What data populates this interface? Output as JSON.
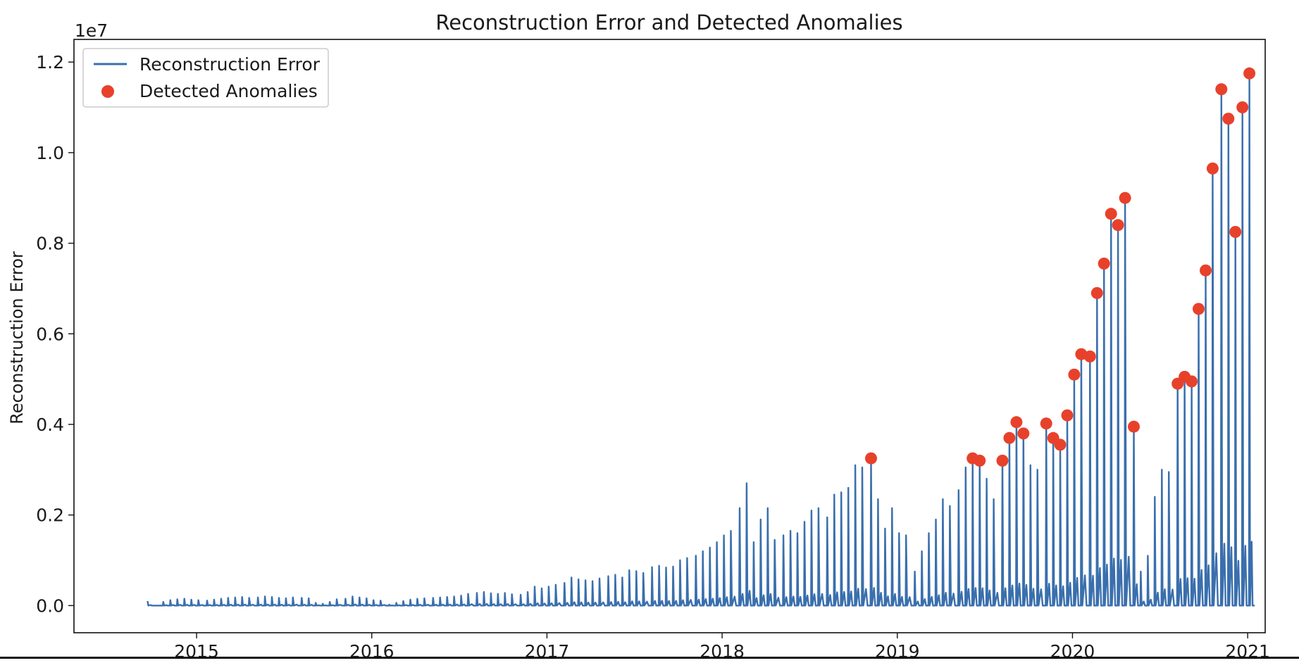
{
  "chart_data": {
    "type": "line",
    "title": "Reconstruction Error and Detected Anomalies",
    "xlabel": "",
    "ylabel": "Reconstruction Error",
    "y_offset_label": "1e7",
    "y_scale": 10000000,
    "xlim": [
      2014.3,
      2021.1
    ],
    "ylim": [
      -600000,
      12500000
    ],
    "x_ticks": [
      2015,
      2016,
      2017,
      2018,
      2019,
      2020,
      2021
    ],
    "x_tick_labels": [
      "2015",
      "2016",
      "2017",
      "2018",
      "2019",
      "2020",
      "2021"
    ],
    "y_ticks": [
      0,
      2000000,
      4000000,
      6000000,
      8000000,
      10000000,
      12000000
    ],
    "y_tick_labels": [
      "0.0",
      "0.2",
      "0.4",
      "0.6",
      "0.8",
      "1.0",
      "1.2"
    ],
    "grid": false,
    "legend_position": "top-left",
    "colors": {
      "line": "#3a6fad",
      "anomaly": "#e8412b"
    },
    "series": [
      {
        "name": "Reconstruction Error",
        "kind": "weekly-spike-line",
        "peaks": [
          [
            2014.72,
            100000
          ],
          [
            2014.76,
            0
          ],
          [
            2014.81,
            80000
          ],
          [
            2014.85,
            120000
          ],
          [
            2014.89,
            140000
          ],
          [
            2014.93,
            150000
          ],
          [
            2014.97,
            130000
          ],
          [
            2015.01,
            120000
          ],
          [
            2015.06,
            110000
          ],
          [
            2015.1,
            130000
          ],
          [
            2015.14,
            150000
          ],
          [
            2015.18,
            170000
          ],
          [
            2015.22,
            180000
          ],
          [
            2015.26,
            190000
          ],
          [
            2015.3,
            170000
          ],
          [
            2015.35,
            180000
          ],
          [
            2015.39,
            200000
          ],
          [
            2015.43,
            190000
          ],
          [
            2015.47,
            170000
          ],
          [
            2015.51,
            160000
          ],
          [
            2015.55,
            180000
          ],
          [
            2015.6,
            170000
          ],
          [
            2015.64,
            160000
          ],
          [
            2015.68,
            60000
          ],
          [
            2015.72,
            40000
          ],
          [
            2015.76,
            80000
          ],
          [
            2015.8,
            140000
          ],
          [
            2015.85,
            150000
          ],
          [
            2015.89,
            200000
          ],
          [
            2015.93,
            180000
          ],
          [
            2015.97,
            160000
          ],
          [
            2016.01,
            120000
          ],
          [
            2016.05,
            110000
          ],
          [
            2016.1,
            20000
          ],
          [
            2016.14,
            60000
          ],
          [
            2016.18,
            100000
          ],
          [
            2016.22,
            130000
          ],
          [
            2016.26,
            150000
          ],
          [
            2016.3,
            160000
          ],
          [
            2016.35,
            170000
          ],
          [
            2016.39,
            180000
          ],
          [
            2016.43,
            190000
          ],
          [
            2016.47,
            200000
          ],
          [
            2016.51,
            220000
          ],
          [
            2016.55,
            260000
          ],
          [
            2016.6,
            280000
          ],
          [
            2016.64,
            300000
          ],
          [
            2016.68,
            270000
          ],
          [
            2016.72,
            260000
          ],
          [
            2016.76,
            280000
          ],
          [
            2016.8,
            250000
          ],
          [
            2016.85,
            240000
          ],
          [
            2016.89,
            300000
          ],
          [
            2016.93,
            420000
          ],
          [
            2016.97,
            380000
          ],
          [
            2017.01,
            420000
          ],
          [
            2017.05,
            460000
          ],
          [
            2017.1,
            500000
          ],
          [
            2017.14,
            620000
          ],
          [
            2017.18,
            580000
          ],
          [
            2017.22,
            560000
          ],
          [
            2017.26,
            540000
          ],
          [
            2017.3,
            600000
          ],
          [
            2017.35,
            650000
          ],
          [
            2017.39,
            680000
          ],
          [
            2017.43,
            620000
          ],
          [
            2017.47,
            780000
          ],
          [
            2017.51,
            760000
          ],
          [
            2017.55,
            720000
          ],
          [
            2017.6,
            850000
          ],
          [
            2017.64,
            880000
          ],
          [
            2017.68,
            840000
          ],
          [
            2017.72,
            860000
          ],
          [
            2017.76,
            1000000
          ],
          [
            2017.8,
            1050000
          ],
          [
            2017.85,
            1100000
          ],
          [
            2017.89,
            1200000
          ],
          [
            2017.93,
            1280000
          ],
          [
            2017.97,
            1400000
          ],
          [
            2018.01,
            1550000
          ],
          [
            2018.05,
            1650000
          ],
          [
            2018.1,
            2150000
          ],
          [
            2018.14,
            2700000
          ],
          [
            2018.18,
            1400000
          ],
          [
            2018.22,
            1900000
          ],
          [
            2018.26,
            2150000
          ],
          [
            2018.3,
            1450000
          ],
          [
            2018.35,
            1550000
          ],
          [
            2018.39,
            1650000
          ],
          [
            2018.43,
            1600000
          ],
          [
            2018.47,
            1850000
          ],
          [
            2018.51,
            2100000
          ],
          [
            2018.55,
            2150000
          ],
          [
            2018.6,
            1950000
          ],
          [
            2018.64,
            2450000
          ],
          [
            2018.68,
            2500000
          ],
          [
            2018.72,
            2600000
          ],
          [
            2018.76,
            3100000
          ],
          [
            2018.8,
            3050000
          ],
          [
            2018.85,
            3250000
          ],
          [
            2018.89,
            2350000
          ],
          [
            2018.93,
            1700000
          ],
          [
            2018.97,
            2150000
          ],
          [
            2019.01,
            1600000
          ],
          [
            2019.05,
            1550000
          ],
          [
            2019.1,
            750000
          ],
          [
            2019.14,
            1200000
          ],
          [
            2019.18,
            1600000
          ],
          [
            2019.22,
            1900000
          ],
          [
            2019.26,
            2350000
          ],
          [
            2019.3,
            2200000
          ],
          [
            2019.35,
            2550000
          ],
          [
            2019.39,
            3050000
          ],
          [
            2019.43,
            3250000
          ],
          [
            2019.47,
            3200000
          ],
          [
            2019.51,
            2800000
          ],
          [
            2019.55,
            2350000
          ],
          [
            2019.6,
            3200000
          ],
          [
            2019.64,
            3700000
          ],
          [
            2019.68,
            4050000
          ],
          [
            2019.72,
            3800000
          ],
          [
            2019.76,
            3100000
          ],
          [
            2019.8,
            3000000
          ],
          [
            2019.85,
            4020000
          ],
          [
            2019.89,
            3700000
          ],
          [
            2019.93,
            3550000
          ],
          [
            2019.97,
            4200000
          ],
          [
            2020.01,
            5100000
          ],
          [
            2020.05,
            5550000
          ],
          [
            2020.1,
            5500000
          ],
          [
            2020.14,
            6900000
          ],
          [
            2020.18,
            7550000
          ],
          [
            2020.22,
            8650000
          ],
          [
            2020.26,
            8400000
          ],
          [
            2020.3,
            9000000
          ],
          [
            2020.35,
            3950000
          ],
          [
            2020.39,
            750000
          ],
          [
            2020.43,
            1100000
          ],
          [
            2020.47,
            2400000
          ],
          [
            2020.51,
            3000000
          ],
          [
            2020.55,
            2950000
          ],
          [
            2020.6,
            4900000
          ],
          [
            2020.64,
            5050000
          ],
          [
            2020.68,
            4950000
          ],
          [
            2020.72,
            6550000
          ],
          [
            2020.76,
            7400000
          ],
          [
            2020.8,
            9650000
          ],
          [
            2020.85,
            11400000
          ],
          [
            2020.89,
            10750000
          ],
          [
            2020.93,
            8250000
          ],
          [
            2020.97,
            11000000
          ],
          [
            2021.01,
            11750000
          ]
        ],
        "end": [
          2021.04,
          0
        ]
      },
      {
        "name": "Detected Anomalies",
        "kind": "scatter",
        "x": [
          2018.85,
          2019.43,
          2019.47,
          2019.6,
          2019.64,
          2019.68,
          2019.72,
          2019.85,
          2019.89,
          2019.93,
          2019.97,
          2020.01,
          2020.05,
          2020.1,
          2020.14,
          2020.18,
          2020.22,
          2020.26,
          2020.3,
          2020.35,
          2020.6,
          2020.64,
          2020.68,
          2020.72,
          2020.76,
          2020.8,
          2020.85,
          2020.89,
          2020.93,
          2020.97,
          2021.01
        ],
        "y": [
          3250000,
          3250000,
          3200000,
          3200000,
          3700000,
          4050000,
          3800000,
          4020000,
          3700000,
          3550000,
          4200000,
          5100000,
          5550000,
          5500000,
          6900000,
          7550000,
          8650000,
          8400000,
          9000000,
          3950000,
          4900000,
          5050000,
          4950000,
          6550000,
          7400000,
          9650000,
          11400000,
          10750000,
          8250000,
          11000000,
          11750000
        ]
      }
    ]
  }
}
